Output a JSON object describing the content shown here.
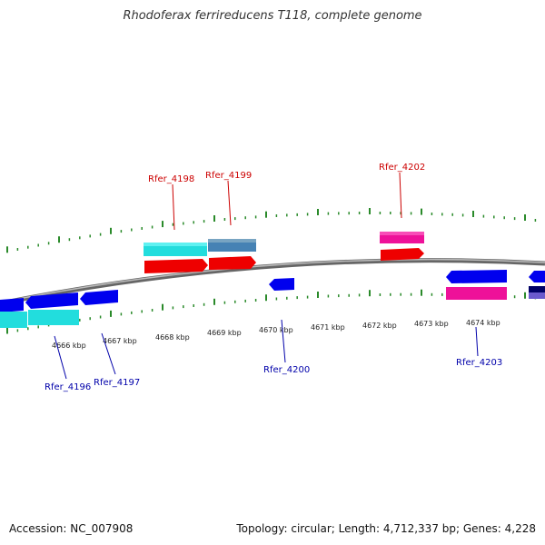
{
  "title": "Rhodoferax ferrireducens T118, complete genome",
  "footer": {
    "accession": "Accession: NC_007908",
    "summary": "Topology: circular; Length: 4,712,337 bp; Genes: 4,228"
  },
  "colors": {
    "backbone": "#7a7a7a",
    "tick": "#2a8a2a",
    "forward_label": "#cc0000",
    "reverse_label": "#0000aa",
    "red": "#ee0000",
    "blue": "#0000ee",
    "cyan": "#22dddd",
    "steelblue": "#4682b4",
    "pink": "#ee1199",
    "purple": "#6a5acd"
  },
  "scale": {
    "unit": "kbp",
    "labels": [
      "4666 kbp",
      "4667 kbp",
      "4668 kbp",
      "4669 kbp",
      "4670 kbp",
      "4671 kbp",
      "4672 kbp",
      "4673 kbp",
      "4674 kbp"
    ]
  },
  "genes": [
    {
      "name": "Rfer_4196",
      "strand": "reverse"
    },
    {
      "name": "Rfer_4197",
      "strand": "reverse"
    },
    {
      "name": "Rfer_4198",
      "strand": "forward"
    },
    {
      "name": "Rfer_4199",
      "strand": "forward"
    },
    {
      "name": "Rfer_4200",
      "strand": "reverse"
    },
    {
      "name": "Rfer_4202",
      "strand": "forward"
    },
    {
      "name": "Rfer_4203",
      "strand": "reverse"
    }
  ]
}
